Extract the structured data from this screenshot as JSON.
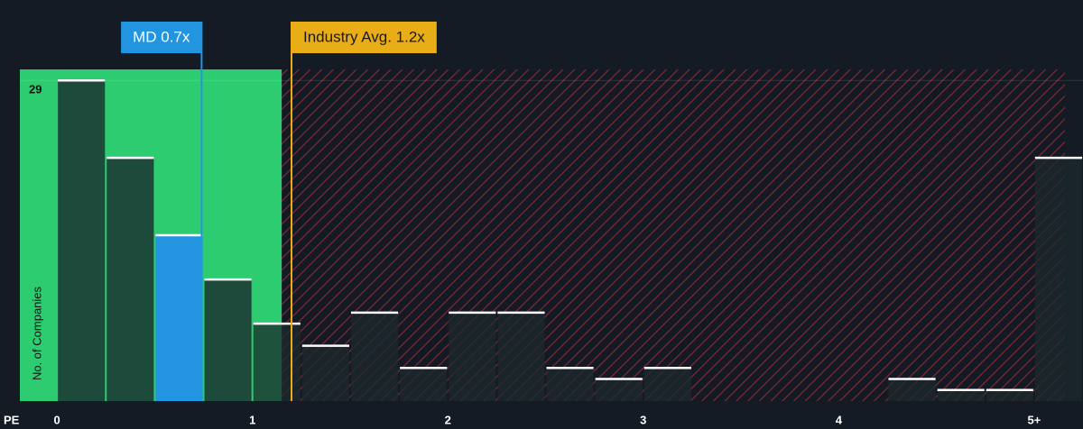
{
  "chart_data": {
    "type": "histogram",
    "x_label": "PE",
    "y_label": "No. of Companies",
    "bins": [
      0,
      0.25,
      0.5,
      0.75,
      1,
      1.25,
      1.5,
      1.75,
      2,
      2.25,
      2.5,
      2.75,
      3,
      3.25,
      3.5,
      3.75,
      4,
      4.25,
      4.5,
      4.75,
      5,
      5.25
    ],
    "values": [
      29,
      22,
      15,
      11,
      7,
      5,
      8,
      3,
      8,
      8,
      3,
      2,
      3,
      0,
      0,
      0,
      0,
      2,
      1,
      1,
      22
    ],
    "xlim": [
      -0.19,
      5.25
    ],
    "ylim": [
      0,
      30
    ],
    "xticks": [
      0,
      1,
      2,
      3,
      4,
      {
        "value": 5,
        "label": "5+"
      }
    ],
    "yticks": [
      29
    ],
    "highlight_bin": 2,
    "highlight_color": "#2394e0",
    "good_range_end": 1.15,
    "good_color": "#2ecc71",
    "bad_color": "#c8323a",
    "annotations": [
      {
        "label": "MD 0.7x",
        "value": 0.74,
        "color": "#2394e0",
        "text_color": "#ffffff"
      },
      {
        "label": "Industry Avg. 1.2x",
        "value": 1.2,
        "color": "#e8ad17",
        "text_color": "#1a1a1a"
      }
    ]
  }
}
